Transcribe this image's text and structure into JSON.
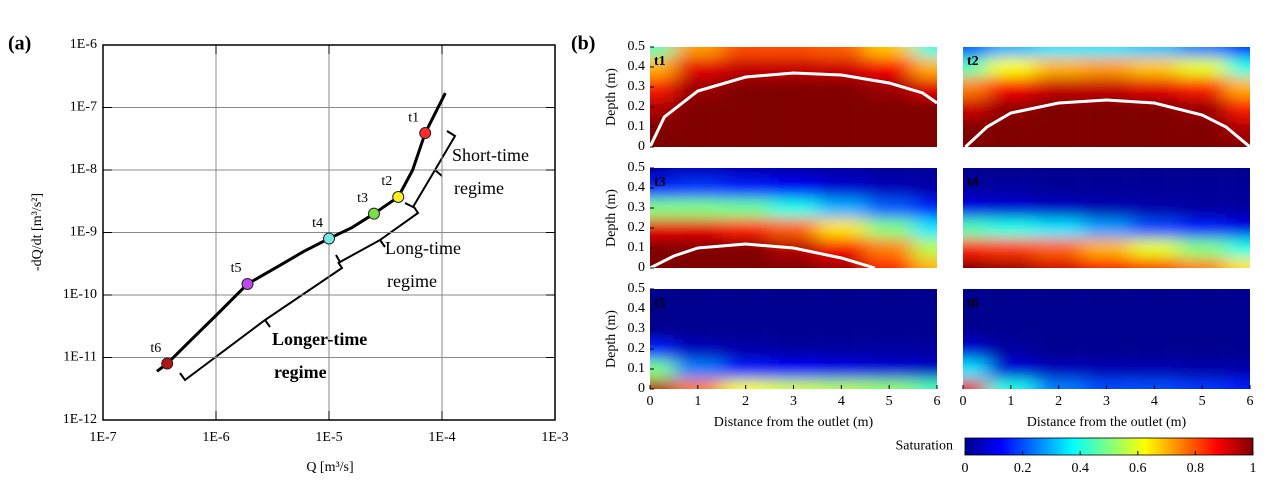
{
  "chart_data": [
    {
      "type": "line",
      "title": "(a)",
      "x_label": "Q [m³/s]",
      "y_label": "-dQ/dt [m³/s²]",
      "xscale": "log",
      "yscale": "log",
      "grid": true,
      "xlim": [
        1e-07,
        0.001
      ],
      "ylim": [
        1e-12,
        1e-06
      ],
      "xticks": [
        {
          "value": 1e-07,
          "label": "1E-7"
        },
        {
          "value": 1e-06,
          "label": "1E-6"
        },
        {
          "value": 1e-05,
          "label": "1E-5"
        },
        {
          "value": 0.0001,
          "label": "1E-4"
        },
        {
          "value": 0.001,
          "label": "1E-3"
        }
      ],
      "yticks": [
        {
          "value": 1e-12,
          "label": "1E-12"
        },
        {
          "value": 1e-11,
          "label": "1E-11"
        },
        {
          "value": 1e-10,
          "label": "1E-10"
        },
        {
          "value": 1e-09,
          "label": "1E-9"
        },
        {
          "value": 1e-08,
          "label": "1E-8"
        },
        {
          "value": 1e-07,
          "label": "1E-7"
        },
        {
          "value": 1e-06,
          "label": "1E-6"
        }
      ],
      "x": [
        3e-07,
        3.7e-07,
        6e-07,
        1e-06,
        1.9e-06,
        3.7e-06,
        6e-06,
        1e-05,
        1.6e-05,
        2.5e-05,
        4.1e-05,
        5.5e-05,
        7.1e-05,
        0.000107
      ],
      "series": [
        {
          "color": "#000000",
          "values": [
            6e-12,
            8e-12,
            1.9e-11,
            4.7e-11,
            1.5e-10,
            3e-10,
            5e-10,
            8e-10,
            1.2e-09,
            2e-09,
            3.7e-09,
            1e-08,
            3.9e-08,
            1.7e-07
          ]
        }
      ],
      "points": {
        "labels": [
          "t1",
          "t2",
          "t3",
          "t4",
          "t5",
          "t6"
        ],
        "x": [
          7.1e-05,
          4.1e-05,
          2.5e-05,
          1e-05,
          1.9e-06,
          3.7e-07
        ],
        "values": [
          3.9e-08,
          3.7e-09,
          2e-09,
          8e-10,
          1.5e-10,
          8e-12
        ],
        "colors": [
          "#ff2a2a",
          "#ffee22",
          "#77e044",
          "#77e8e0",
          "#c046f0",
          "#b01414"
        ]
      },
      "annotations": [
        {
          "lines": [
            "Short-time",
            "regime"
          ],
          "color": "#000000"
        },
        {
          "lines": [
            "Long-time",
            "regime"
          ],
          "color": "#000000"
        },
        {
          "lines": [
            "Longer-time",
            "regime"
          ],
          "color": "#3a5ee8"
        }
      ]
    },
    {
      "type": "heatmap",
      "title": "(b)",
      "x_label": "Distance from the outlet (m)",
      "y_label": "Depth (m)",
      "xlim": [
        0,
        6
      ],
      "ylim": [
        0,
        0.5
      ],
      "xticks": [
        0,
        1,
        2,
        3,
        4,
        5,
        6
      ],
      "yticks": [
        0,
        0.1,
        0.2,
        0.3,
        0.4,
        0.5
      ],
      "x": [
        0,
        1,
        2,
        3,
        4,
        5,
        6
      ],
      "y": [
        0,
        0.1,
        0.2,
        0.3,
        0.4,
        0.5
      ],
      "colormap": [
        "#00008f",
        "#0000ff",
        "#0080ff",
        "#00ffff",
        "#80ff80",
        "#ffff00",
        "#ff8000",
        "#ff0000",
        "#800000"
      ],
      "colorbar": {
        "label": "Saturation",
        "lim": [
          0,
          1
        ],
        "ticks": [
          0,
          0.2,
          0.4,
          0.6,
          0.8,
          1
        ]
      },
      "panels": [
        {
          "label": "t1",
          "values": [
            [
              1,
              1,
              1,
              1,
              1,
              1,
              1
            ],
            [
              1,
              1,
              1,
              1,
              1,
              1,
              1
            ],
            [
              0.95,
              1,
              1,
              1,
              1,
              1,
              1
            ],
            [
              0.85,
              0.97,
              1,
              1,
              1,
              0.97,
              0.9
            ],
            [
              0.7,
              0.9,
              0.93,
              0.93,
              0.92,
              0.88,
              0.7
            ],
            [
              0.45,
              0.72,
              0.8,
              0.8,
              0.78,
              0.68,
              0.4
            ]
          ],
          "contour": {
            "x": [
              0,
              0.3,
              1,
              2,
              3,
              4,
              5,
              5.7,
              6
            ],
            "y": [
              0,
              0.15,
              0.28,
              0.35,
              0.37,
              0.36,
              0.32,
              0.27,
              0.22
            ]
          }
        },
        {
          "label": "t2",
          "values": [
            [
              1,
              1,
              1,
              1,
              1,
              1,
              1
            ],
            [
              1,
              1,
              1,
              1,
              1,
              1,
              0.95
            ],
            [
              0.92,
              0.98,
              1,
              1,
              1,
              0.97,
              0.85
            ],
            [
              0.75,
              0.88,
              0.93,
              0.93,
              0.9,
              0.85,
              0.7
            ],
            [
              0.45,
              0.62,
              0.7,
              0.72,
              0.68,
              0.6,
              0.4
            ],
            [
              0.2,
              0.3,
              0.35,
              0.35,
              0.32,
              0.25,
              0.15
            ]
          ],
          "contour": {
            "x": [
              0.05,
              0.5,
              1,
              2,
              3,
              4,
              5,
              5.5,
              6
            ],
            "y": [
              0,
              0.1,
              0.17,
              0.22,
              0.235,
              0.22,
              0.16,
              0.1,
              0
            ]
          }
        },
        {
          "label": "t3",
          "values": [
            [
              1,
              1,
              1,
              1,
              0.97,
              0.85,
              0.7
            ],
            [
              1,
              1,
              1,
              0.95,
              0.88,
              0.75,
              0.55
            ],
            [
              0.9,
              0.9,
              0.85,
              0.78,
              0.65,
              0.5,
              0.35
            ],
            [
              0.5,
              0.5,
              0.48,
              0.4,
              0.3,
              0.22,
              0.15
            ],
            [
              0.15,
              0.18,
              0.15,
              0.12,
              0.08,
              0.05,
              0.03
            ],
            [
              0.03,
              0.05,
              0.04,
              0.03,
              0.02,
              0.01,
              0.01
            ]
          ],
          "contour": {
            "x": [
              0,
              0.5,
              1,
              2,
              3,
              4,
              4.7
            ],
            "y": [
              0,
              0.06,
              0.1,
              0.12,
              0.1,
              0.05,
              0
            ]
          }
        },
        {
          "label": "t4",
          "values": [
            [
              1,
              0.97,
              0.92,
              0.87,
              0.82,
              0.75,
              0.65
            ],
            [
              0.85,
              0.82,
              0.78,
              0.7,
              0.6,
              0.5,
              0.4
            ],
            [
              0.45,
              0.4,
              0.35,
              0.28,
              0.2,
              0.15,
              0.1
            ],
            [
              0.1,
              0.08,
              0.06,
              0.04,
              0.03,
              0.02,
              0.02
            ],
            [
              0.02,
              0.02,
              0.01,
              0.01,
              0.01,
              0.01,
              0.01
            ],
            [
              0,
              0,
              0,
              0,
              0,
              0,
              0
            ]
          ]
        },
        {
          "label": "t5",
          "values": [
            [
              0.95,
              0.75,
              0.62,
              0.58,
              0.55,
              0.52,
              0.45
            ],
            [
              0.5,
              0.25,
              0.15,
              0.12,
              0.1,
              0.08,
              0.06
            ],
            [
              0.15,
              0.05,
              0.03,
              0.02,
              0.02,
              0.02,
              0.02
            ],
            [
              0,
              0,
              0,
              0,
              0,
              0,
              0
            ],
            [
              0,
              0,
              0,
              0,
              0,
              0,
              0
            ],
            [
              0,
              0,
              0,
              0,
              0,
              0,
              0
            ]
          ]
        },
        {
          "label": "t6",
          "values": [
            [
              0.9,
              0.4,
              0.25,
              0.2,
              0.2,
              0.18,
              0.15
            ],
            [
              0.35,
              0.08,
              0.05,
              0.04,
              0.04,
              0.03,
              0.03
            ],
            [
              0.08,
              0.02,
              0,
              0,
              0,
              0,
              0
            ],
            [
              0,
              0,
              0,
              0,
              0,
              0,
              0
            ],
            [
              0,
              0,
              0,
              0,
              0,
              0,
              0
            ],
            [
              0,
              0,
              0,
              0,
              0,
              0,
              0
            ]
          ]
        }
      ]
    }
  ]
}
